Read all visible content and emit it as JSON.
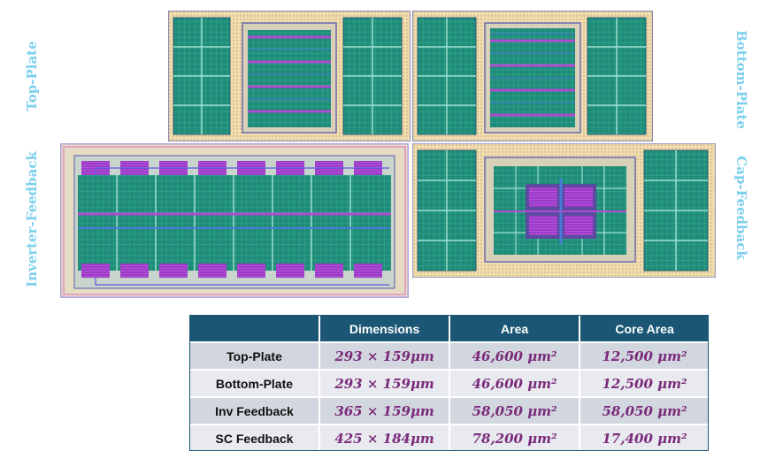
{
  "side_labels": {
    "top_plate": "Top-Plate",
    "bottom_plate": "Bottom-Plate",
    "inverter_feedback": "Inverter-Feedback",
    "cap_feedback": "Cap-Feedback"
  },
  "table": {
    "headers": [
      "",
      "Dimensions",
      "Area",
      "Core Area"
    ],
    "rows": [
      {
        "name": "Top-Plate",
        "dimensions": "293 × 159μm",
        "area": "46,600 μm²",
        "core_area": "12,500 μm²"
      },
      {
        "name": "Bottom-Plate",
        "dimensions": "293 × 159μm",
        "area": "46,600 μm²",
        "core_area": "12,500 μm²"
      },
      {
        "name": "Inv Feedback",
        "dimensions": "365 × 159μm",
        "area": "58,050 μm²",
        "core_area": "58,050 μm²"
      },
      {
        "name": "SC Feedback",
        "dimensions": "425 × 184μm",
        "area": "78,200 μm²",
        "core_area": "17,400 μm²"
      }
    ]
  },
  "colors": {
    "label_blue": "#7dcfee",
    "header_bg": "#1b5775",
    "value_purple": "#7a2a7a",
    "layout_green": "#1e8c78",
    "layout_purple": "#b04ad0",
    "layout_frame": "#e8cfa0"
  }
}
